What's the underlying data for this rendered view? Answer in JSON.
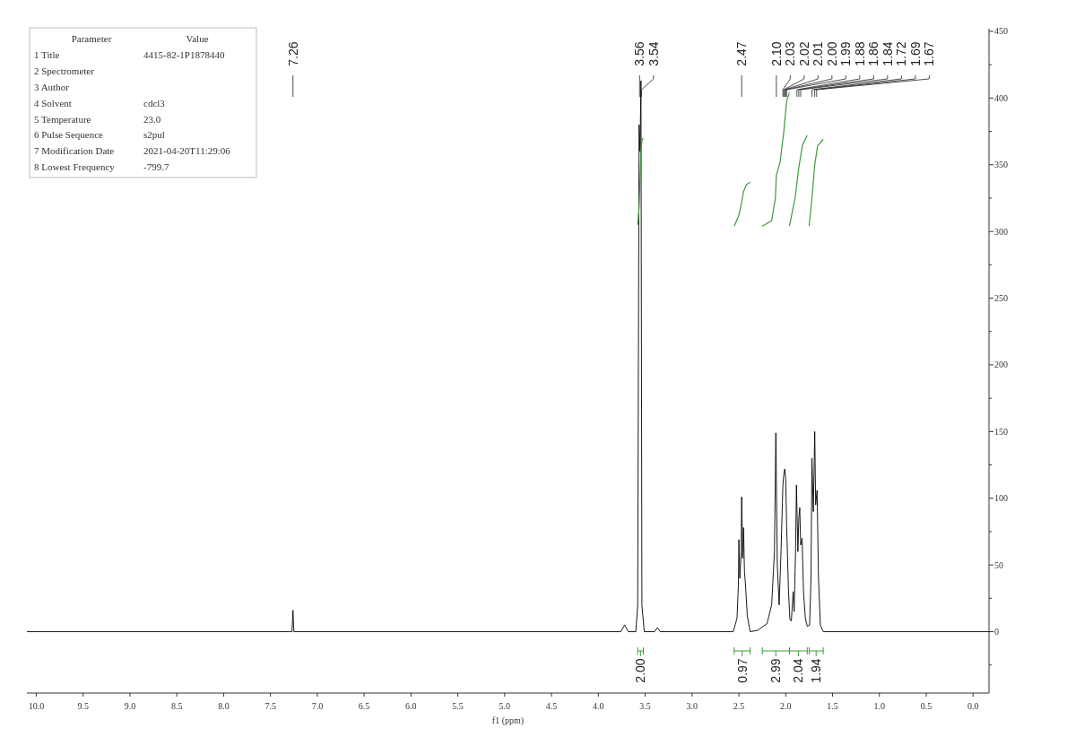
{
  "chart_data": {
    "type": "line",
    "xlabel": "f1 (ppm)",
    "xlim": [
      10.1,
      -0.17
    ],
    "ylim": [
      -46,
      452
    ],
    "xticks": [
      {
        "value": 10,
        "label": "10.0"
      },
      9.5,
      {
        "value": 9,
        "label": "9.0"
      },
      8.5,
      {
        "value": 8,
        "label": "8.0"
      },
      7.5,
      {
        "value": 7,
        "label": "7.0"
      },
      6.5,
      {
        "value": 6,
        "label": "6.0"
      },
      5.5,
      {
        "value": 5,
        "label": "5.0"
      },
      4.5,
      {
        "value": 4,
        "label": "4.0"
      },
      3.5,
      {
        "value": 3,
        "label": "3.0"
      },
      2.5,
      {
        "value": 2,
        "label": "2.0"
      },
      1.5,
      {
        "value": 1,
        "label": "1.0"
      },
      0.5,
      {
        "value": 0,
        "label": "0.0"
      }
    ],
    "yticks": [
      {
        "value": -25,
        "label": null
      },
      0,
      {
        "value": 25,
        "label": null
      },
      50,
      {
        "value": 75,
        "label": null
      },
      100,
      {
        "value": 125,
        "label": null
      },
      150,
      {
        "value": 175,
        "label": null
      },
      200,
      {
        "value": 225,
        "label": null
      },
      250,
      {
        "value": 275,
        "label": null
      },
      300,
      {
        "value": 325,
        "label": null
      },
      350,
      {
        "value": 375,
        "label": null
      },
      400,
      {
        "value": 425,
        "label": null
      },
      450
    ],
    "grid": false,
    "marker": "none",
    "line_style": "solid",
    "series": [
      {
        "color": "#000000",
        "x": [
          10.1,
          7.3,
          7.27,
          7.26,
          7.25,
          3.76,
          3.72,
          3.68,
          3.6,
          3.58,
          3.565,
          3.555,
          3.545,
          3.535,
          3.51,
          3.4,
          3.37,
          3.34,
          2.56,
          2.52,
          2.505,
          2.5,
          2.49,
          2.475,
          2.47,
          2.46,
          2.45,
          2.44,
          2.43,
          2.41,
          2.38,
          2.3,
          2.2,
          2.15,
          2.12,
          2.105,
          2.09,
          2.07,
          2.05,
          2.03,
          2.02,
          2.01,
          2.0,
          1.99,
          1.97,
          1.955,
          1.94,
          1.92,
          1.91,
          1.895,
          1.885,
          1.87,
          1.86,
          1.85,
          1.84,
          1.825,
          1.81,
          1.79,
          1.77,
          1.745,
          1.73,
          1.72,
          1.705,
          1.69,
          1.68,
          1.665,
          1.65,
          1.63,
          1.6,
          -0.17
        ],
        "values": [
          0,
          0,
          0,
          16,
          0,
          0,
          5,
          0,
          0,
          20,
          380,
          360,
          413,
          20,
          0,
          0,
          3,
          0,
          0,
          10,
          35,
          69,
          40,
          60,
          101,
          55,
          78,
          45,
          36,
          12,
          0,
          1,
          6,
          20,
          60,
          149,
          50,
          20,
          60,
          110,
          118,
          122,
          115,
          80,
          30,
          9,
          8,
          30,
          15,
          60,
          110,
          60,
          85,
          93,
          65,
          70,
          30,
          10,
          4,
          5,
          40,
          130,
          90,
          150,
          95,
          106,
          40,
          5,
          0,
          0
        ]
      },
      {
        "color": "#3c9a3c",
        "x": [
          3.58,
          3.565,
          3.555,
          3.545,
          3.535,
          3.52
        ],
        "values": [
          305,
          318,
          340,
          360,
          368,
          370
        ]
      },
      {
        "color": "#3c9a3c",
        "x": [
          2.55,
          2.5,
          2.47,
          2.45,
          2.42,
          2.38
        ],
        "values": [
          304,
          312,
          322,
          330,
          335,
          337
        ]
      },
      {
        "color": "#3c9a3c",
        "x": [
          2.25,
          2.15,
          2.11,
          2.1,
          2.06,
          2.02,
          1.99,
          1.96
        ],
        "values": [
          304,
          308,
          325,
          342,
          352,
          375,
          398,
          404
        ]
      },
      {
        "color": "#3c9a3c",
        "x": [
          1.96,
          1.9,
          1.86,
          1.82,
          1.77
        ],
        "values": [
          304,
          325,
          348,
          365,
          372
        ]
      },
      {
        "color": "#3c9a3c",
        "x": [
          1.75,
          1.72,
          1.69,
          1.66,
          1.6
        ],
        "values": [
          304,
          325,
          350,
          364,
          369
        ]
      }
    ],
    "annotations": [
      "Parameter\tValue",
      "1 Title\t4415-82-1P1878440",
      "2 Spectrometer",
      "3 Author",
      "4 Solvent\tcdcl3",
      "5 Temperature\t23.0",
      "6 Pulse Sequence\ts2pul",
      "7 Modification Date\t2021-04-20T11:29:06",
      "8 Lowest Frequency\t-799.7",
      {
        "text": "7.26",
        "x": 7.26
      },
      {
        "text": "3.56",
        "x": 3.56
      },
      {
        "text": "3.54",
        "x": 3.54
      },
      {
        "text": "2.47",
        "x": 2.47
      },
      {
        "text": "2.10",
        "x": 2.1
      },
      {
        "text": "2.03",
        "x": 2.03
      },
      {
        "text": "2.02",
        "x": 2.02
      },
      {
        "text": "2.01",
        "x": 2.01
      },
      {
        "text": "2.00",
        "x": 2.0
      },
      {
        "text": "1.99",
        "x": 1.99
      },
      {
        "text": "1.88",
        "x": 1.88
      },
      {
        "text": "1.86",
        "x": 1.86
      },
      {
        "text": "1.84",
        "x": 1.84
      },
      {
        "text": "1.72",
        "x": 1.72
      },
      {
        "text": "1.69",
        "x": 1.69
      },
      {
        "text": "1.67",
        "x": 1.67
      },
      "2.00",
      "0.97",
      "2.99",
      "2.04",
      "1.94"
    ]
  }
}
